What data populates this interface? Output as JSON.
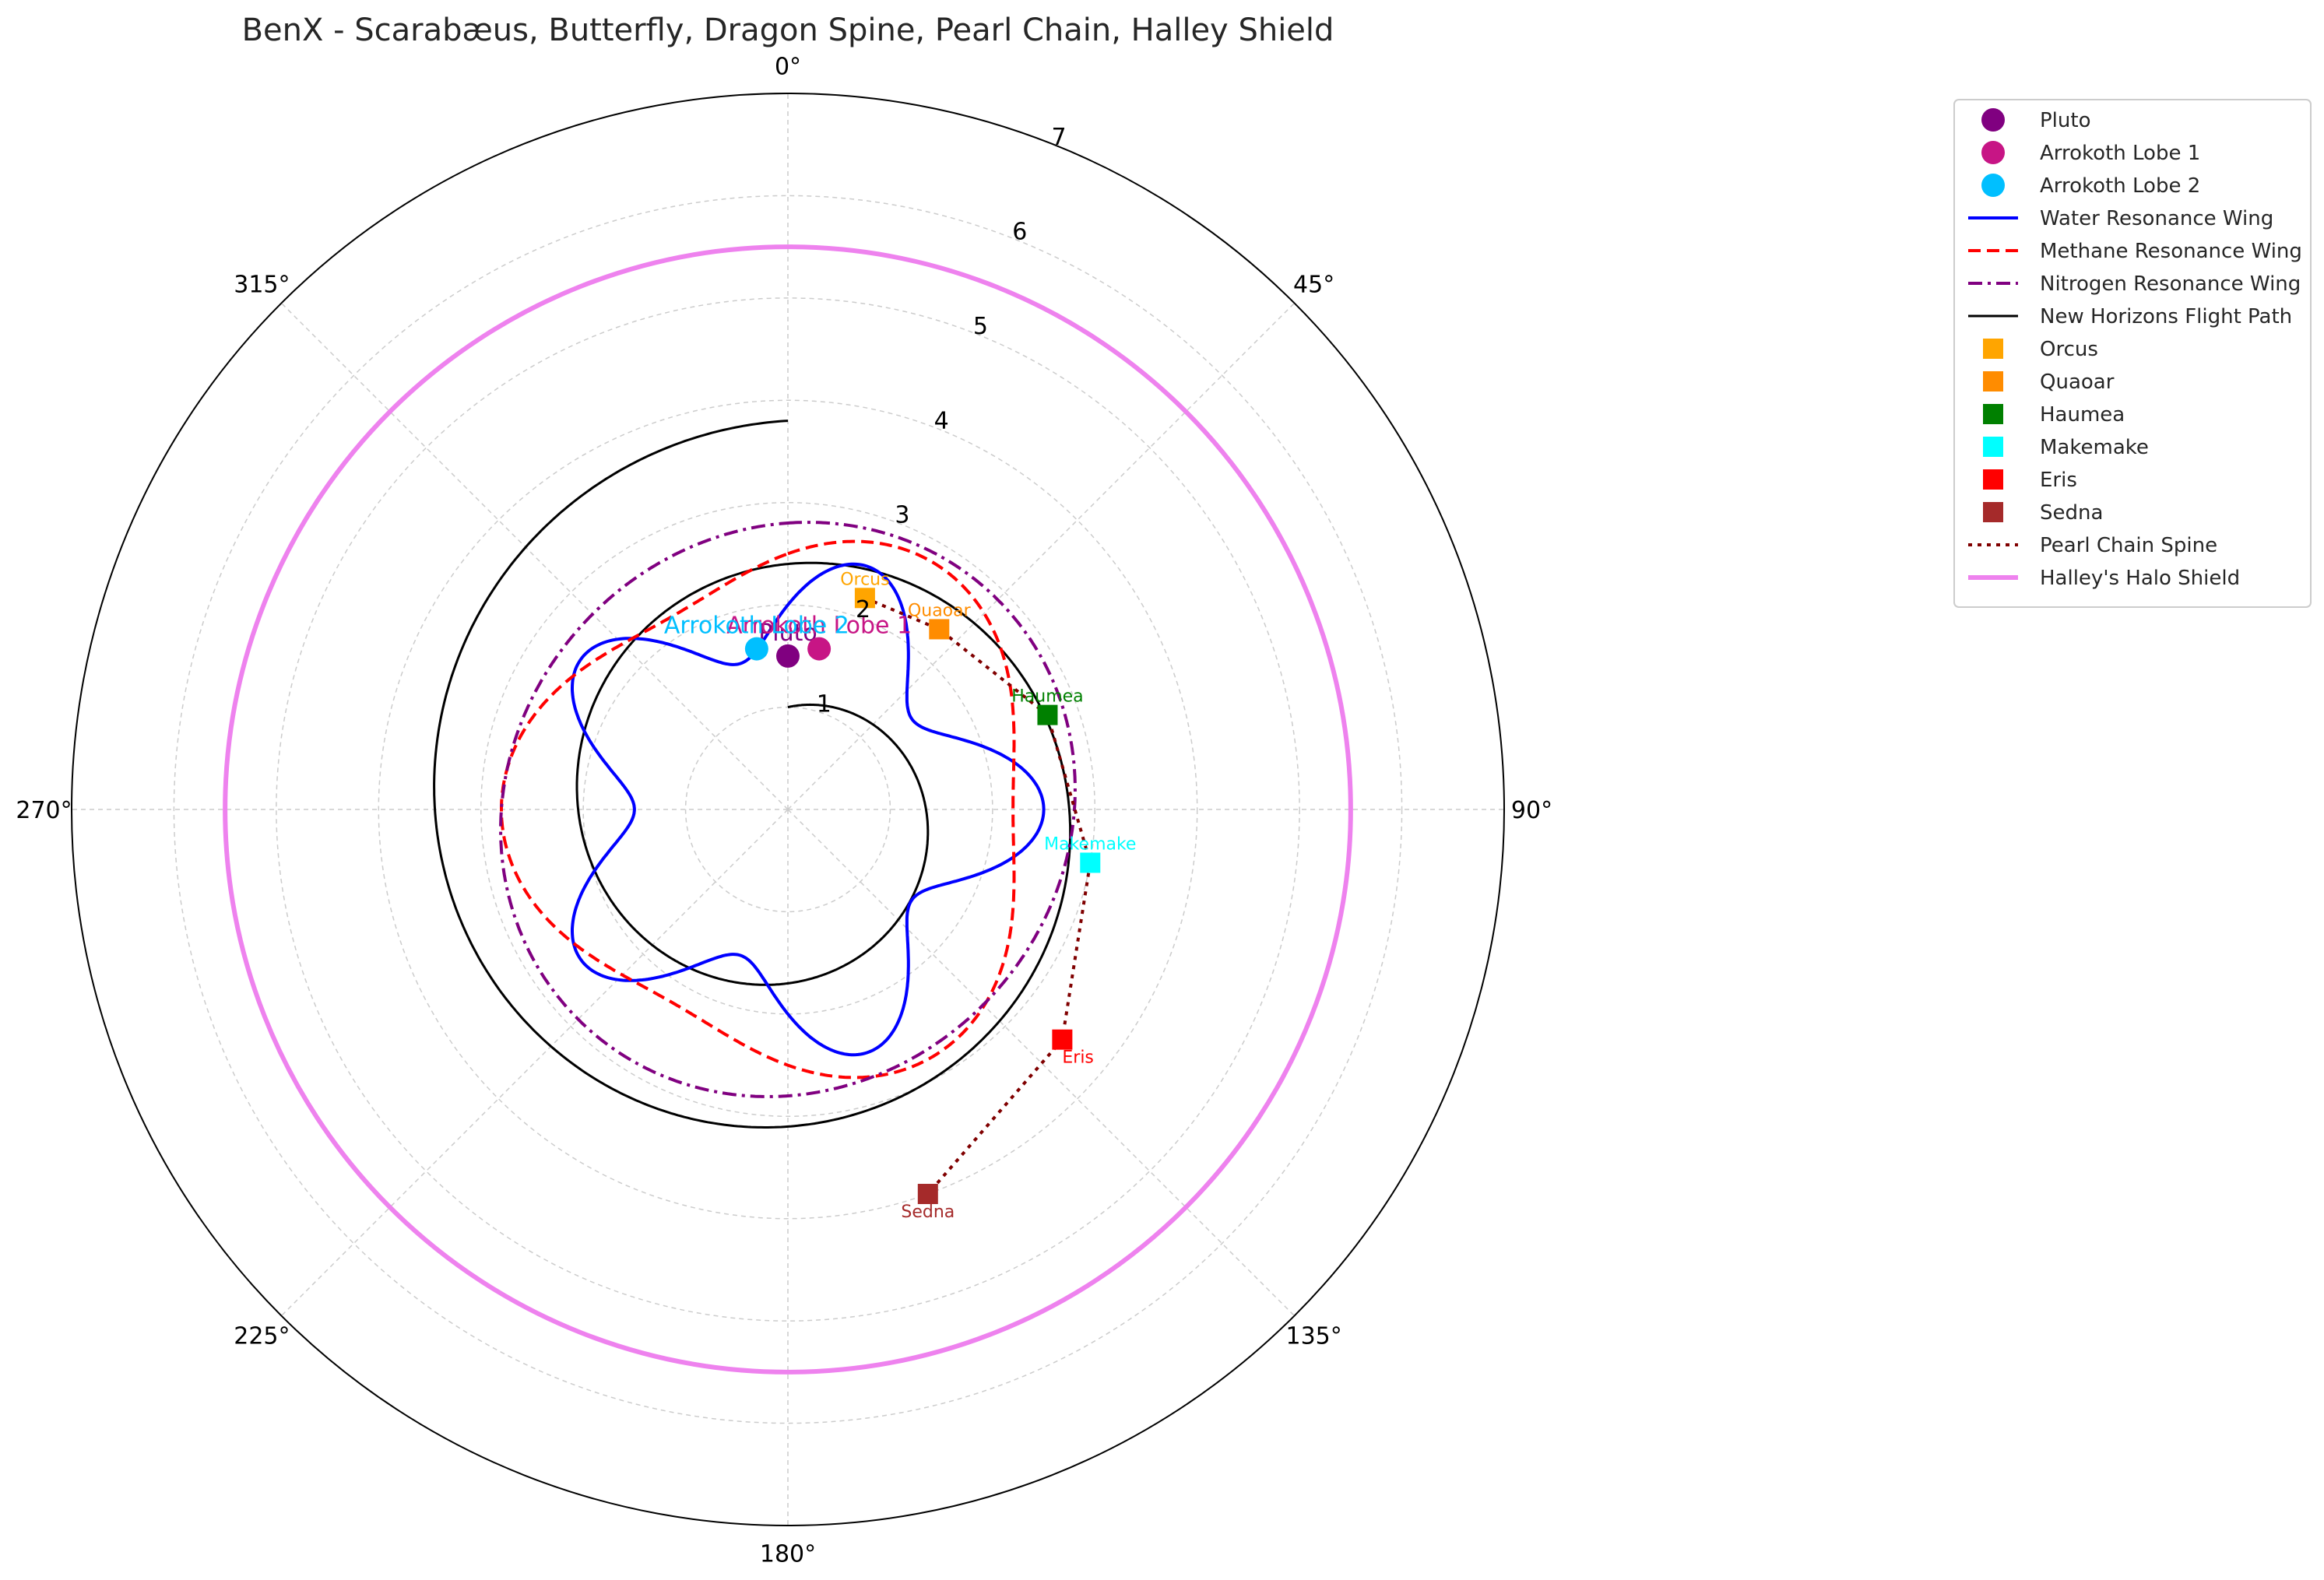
{
  "chart_data": {
    "type": "polar",
    "title": "BenX - Scarabæus, Butterfly, Dragon Spine, Pearl Chain, Halley Shield",
    "theta_direction": "clockwise",
    "theta_zero": "top",
    "theta_ticks": [
      "0°",
      "45°",
      "90°",
      "135°",
      "180°",
      "225°",
      "270°",
      "315°"
    ],
    "r_ticks": [
      "1",
      "2",
      "3",
      "4",
      "5",
      "6",
      "7"
    ],
    "rlim": [
      0,
      7
    ],
    "grid": true,
    "legend_position": "outside-right",
    "series": [
      {
        "name": "Pluto",
        "kind": "point",
        "theta_deg": 0,
        "r": 1.5,
        "color": "#800080",
        "marker": "circle",
        "label": "Pluto",
        "label_size": "large"
      },
      {
        "name": "Arrokoth Lobe 1",
        "kind": "point",
        "theta_deg": 11,
        "r": 1.6,
        "color": "#c71585",
        "marker": "circle",
        "label": "Arrokoth Lobe 1",
        "label_size": "large"
      },
      {
        "name": "Arrokoth Lobe 2",
        "kind": "point",
        "theta_deg": -11,
        "r": 1.6,
        "color": "#00bfff",
        "marker": "circle",
        "label": "Arrokoth Lobe 2",
        "label_size": "large"
      },
      {
        "name": "Water Resonance Wing",
        "kind": "curve",
        "formula": "r = 2 + 0.5*sin(5*theta)",
        "color": "#0000ff",
        "dash": "solid",
        "width": 4
      },
      {
        "name": "Methane Resonance Wing",
        "kind": "curve",
        "formula": "r = 2.5 + 0.3*sin(3*theta)",
        "color": "#ff0000",
        "dash": "dashed",
        "width": 4
      },
      {
        "name": "Nitrogen Resonance Wing",
        "kind": "curve",
        "formula": "r = 2.8 + 0.1*sin(2*theta)",
        "color": "#800080",
        "dash": "dashdot",
        "width": 4
      },
      {
        "name": "New Horizons Flight Path",
        "kind": "spiral",
        "formula": "r = 1 + theta (2 turns)",
        "color": "#000000",
        "dash": "solid",
        "width": 3
      },
      {
        "name": "Orcus",
        "kind": "point",
        "theta_deg": 20,
        "r": 2.2,
        "color": "#ffa500",
        "marker": "square",
        "label": "Orcus"
      },
      {
        "name": "Quaoar",
        "kind": "point",
        "theta_deg": 40,
        "r": 2.3,
        "color": "#ff8c00",
        "marker": "square",
        "label": "Quaoar"
      },
      {
        "name": "Haumea",
        "kind": "point",
        "theta_deg": 70,
        "r": 2.7,
        "color": "#008000",
        "marker": "square",
        "label": "Haumea"
      },
      {
        "name": "Makemake",
        "kind": "point",
        "theta_deg": 100,
        "r": 3.0,
        "color": "#00ffff",
        "marker": "square",
        "label": "Makemake"
      },
      {
        "name": "Eris",
        "kind": "point",
        "theta_deg": 130,
        "r": 3.5,
        "color": "#ff0000",
        "marker": "square",
        "label": "Eris"
      },
      {
        "name": "Sedna",
        "kind": "point",
        "theta_deg": 160,
        "r": 4.0,
        "color": "#a52a2a",
        "marker": "square",
        "label": "Sedna"
      },
      {
        "name": "Pearl Chain Spine",
        "kind": "polyline",
        "through": [
          "Orcus",
          "Quaoar",
          "Haumea",
          "Makemake",
          "Eris",
          "Sedna"
        ],
        "color": "#800000",
        "dash": "dotted",
        "width": 4
      },
      {
        "name": "Halley's Halo Shield",
        "kind": "circle",
        "r": 5.5,
        "color": "#ee82ee",
        "dash": "solid",
        "width": 6
      }
    ]
  }
}
